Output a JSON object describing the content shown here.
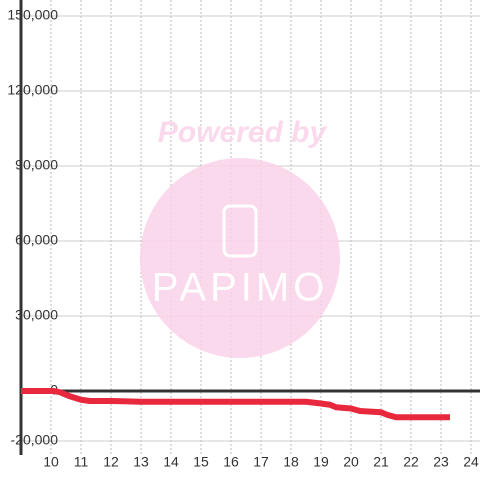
{
  "chart_data": {
    "type": "line",
    "watermark": {
      "title": "Powered by",
      "brand": "PAPIMO"
    },
    "x": [
      9,
      10.1,
      10.3,
      10.6,
      11,
      11.3,
      12,
      13,
      14,
      15,
      16,
      17,
      18,
      18.5,
      19,
      19.3,
      19.5,
      20,
      20.3,
      21,
      21.2,
      21.5,
      22,
      23.3
    ],
    "series": [
      {
        "color": "#e8283c",
        "values": [
          0,
          0,
          -500,
          -2000,
          -3500,
          -4000,
          -4000,
          -4300,
          -4300,
          -4300,
          -4300,
          -4300,
          -4300,
          -4300,
          -5000,
          -5500,
          -6500,
          -7000,
          -8000,
          -8500,
          -9500,
          -10500,
          -10500,
          -10500
        ]
      }
    ],
    "xlim": [
      9,
      24.3
    ],
    "xticks": [
      10,
      11,
      12,
      13,
      14,
      15,
      16,
      17,
      18,
      19,
      20,
      21,
      22,
      23,
      24
    ],
    "ylim": [
      -20000,
      150000
    ],
    "yticks": [
      {
        "value": -20000,
        "label": "-20,000"
      },
      0,
      {
        "value": 30000,
        "label": "30,000"
      },
      {
        "value": 60000,
        "label": "60,000"
      },
      {
        "value": 90000,
        "label": "90,000"
      },
      {
        "value": 120000,
        "label": "120,000"
      },
      {
        "value": 150000,
        "label": "150,000"
      }
    ],
    "grid": true
  }
}
